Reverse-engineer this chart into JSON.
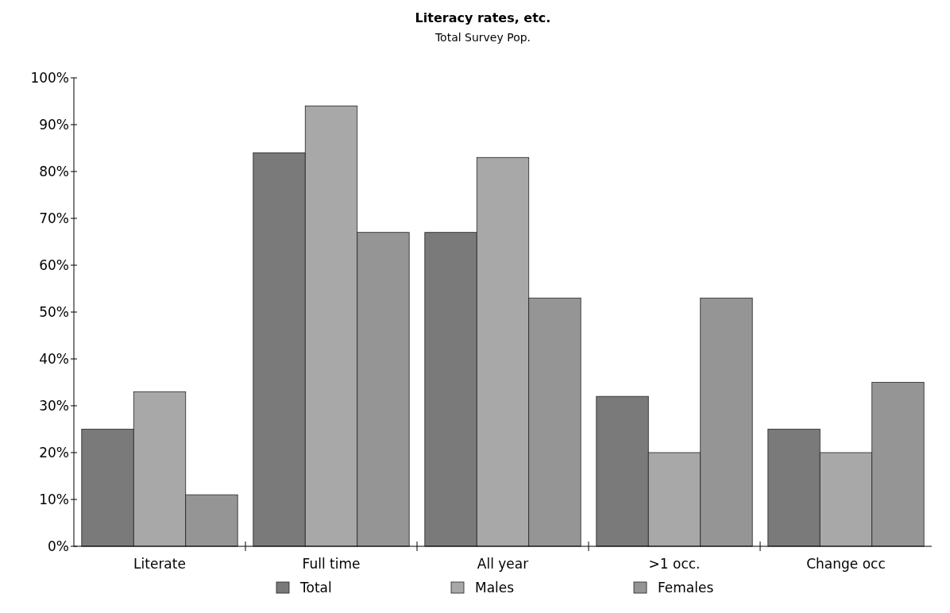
{
  "chart_data": {
    "type": "bar",
    "title": "Literacy rates, etc.",
    "subtitle": "Total Survey Pop.",
    "categories": [
      "Literate",
      "Full time",
      "All year",
      ">1 occ.",
      "Change occ"
    ],
    "series": [
      {
        "name": "Total",
        "color": "#7a7a7a",
        "values": [
          25,
          84,
          67,
          32,
          25
        ]
      },
      {
        "name": "Males",
        "color": "#a8a8a8",
        "values": [
          33,
          94,
          83,
          20,
          20
        ]
      },
      {
        "name": "Females",
        "color": "#959595",
        "values": [
          11,
          67,
          53,
          53,
          35
        ]
      }
    ],
    "ylim": [
      0,
      100
    ],
    "yticks": [
      {
        "value": 0,
        "label": "0%"
      },
      {
        "value": 10,
        "label": "10%"
      },
      {
        "value": 20,
        "label": "20%"
      },
      {
        "value": 30,
        "label": "30%"
      },
      {
        "value": 40,
        "label": "40%"
      },
      {
        "value": 50,
        "label": "50%"
      },
      {
        "value": 60,
        "label": "60%"
      },
      {
        "value": 70,
        "label": "70%"
      },
      {
        "value": 80,
        "label": "80%"
      },
      {
        "value": 90,
        "label": "90%"
      },
      {
        "value": 100,
        "label": "100%"
      }
    ],
    "grid": false,
    "legend": "bottom"
  }
}
